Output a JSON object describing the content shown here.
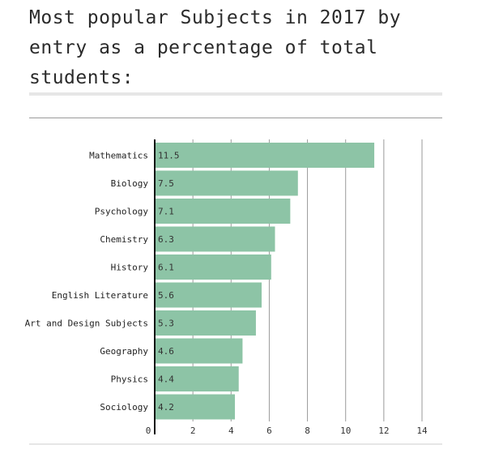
{
  "title": "Most popular Subjects in 2017 by entry as a percentage of total students:",
  "chart_data": {
    "type": "bar",
    "orientation": "horizontal",
    "title": "Most popular Subjects in 2017 by entry as a percentage of total students:",
    "xlabel": "",
    "ylabel": "",
    "xlim": [
      0,
      14
    ],
    "xticks": [
      0,
      2,
      4,
      6,
      8,
      10,
      12,
      14
    ],
    "grid": true,
    "bar_color": "#8dc4a6",
    "categories": [
      "Mathematics",
      "Biology",
      "Psychology",
      "Chemistry",
      "History",
      "English Literature",
      "Art and Design Subjects",
      "Geography",
      "Physics",
      "Sociology"
    ],
    "values": [
      11.5,
      7.5,
      7.1,
      6.3,
      6.1,
      5.6,
      5.3,
      4.6,
      4.4,
      4.2
    ],
    "value_labels": [
      "11.5",
      "7.5",
      "7.1",
      "6.3",
      "6.1",
      "5.6",
      "5.3",
      "4.6",
      "4.4",
      "4.2"
    ]
  }
}
